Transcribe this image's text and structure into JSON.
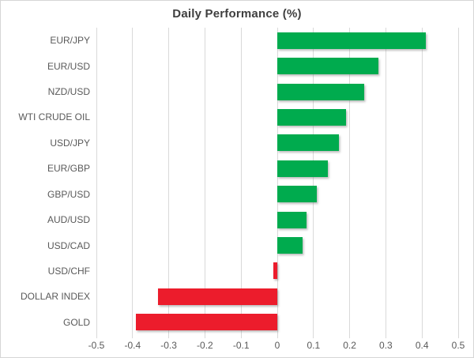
{
  "chart_data": {
    "type": "bar",
    "orientation": "horizontal",
    "title": "Daily Performance (%)",
    "categories": [
      "EUR/JPY",
      "EUR/USD",
      "NZD/USD",
      "WTI CRUDE OIL",
      "USD/JPY",
      "EUR/GBP",
      "GBP/USD",
      "AUD/USD",
      "USD/CAD",
      "USD/CHF",
      "DOLLAR INDEX",
      "GOLD"
    ],
    "values": [
      0.41,
      0.28,
      0.24,
      0.19,
      0.17,
      0.14,
      0.11,
      0.08,
      0.07,
      -0.01,
      -0.33,
      -0.39
    ],
    "xlabel": "",
    "ylabel": "",
    "xlim": [
      -0.5,
      0.5
    ],
    "x_ticks": [
      -0.5,
      -0.4,
      -0.3,
      -0.2,
      -0.1,
      0,
      0.1,
      0.2,
      0.3,
      0.4,
      0.5
    ],
    "x_tick_labels": [
      "-0.5",
      "-0.4",
      "-0.3",
      "-0.2",
      "-0.1",
      "0",
      "0.1",
      "0.2",
      "0.3",
      "0.4",
      "0.5"
    ],
    "grid": true,
    "legend_position": "none",
    "colors": {
      "positive": "#00ab4e",
      "negative": "#ec1c2c",
      "gridline": "#d9d9d9",
      "title_text": "#3f3f3f",
      "axis_text": "#595959"
    }
  }
}
